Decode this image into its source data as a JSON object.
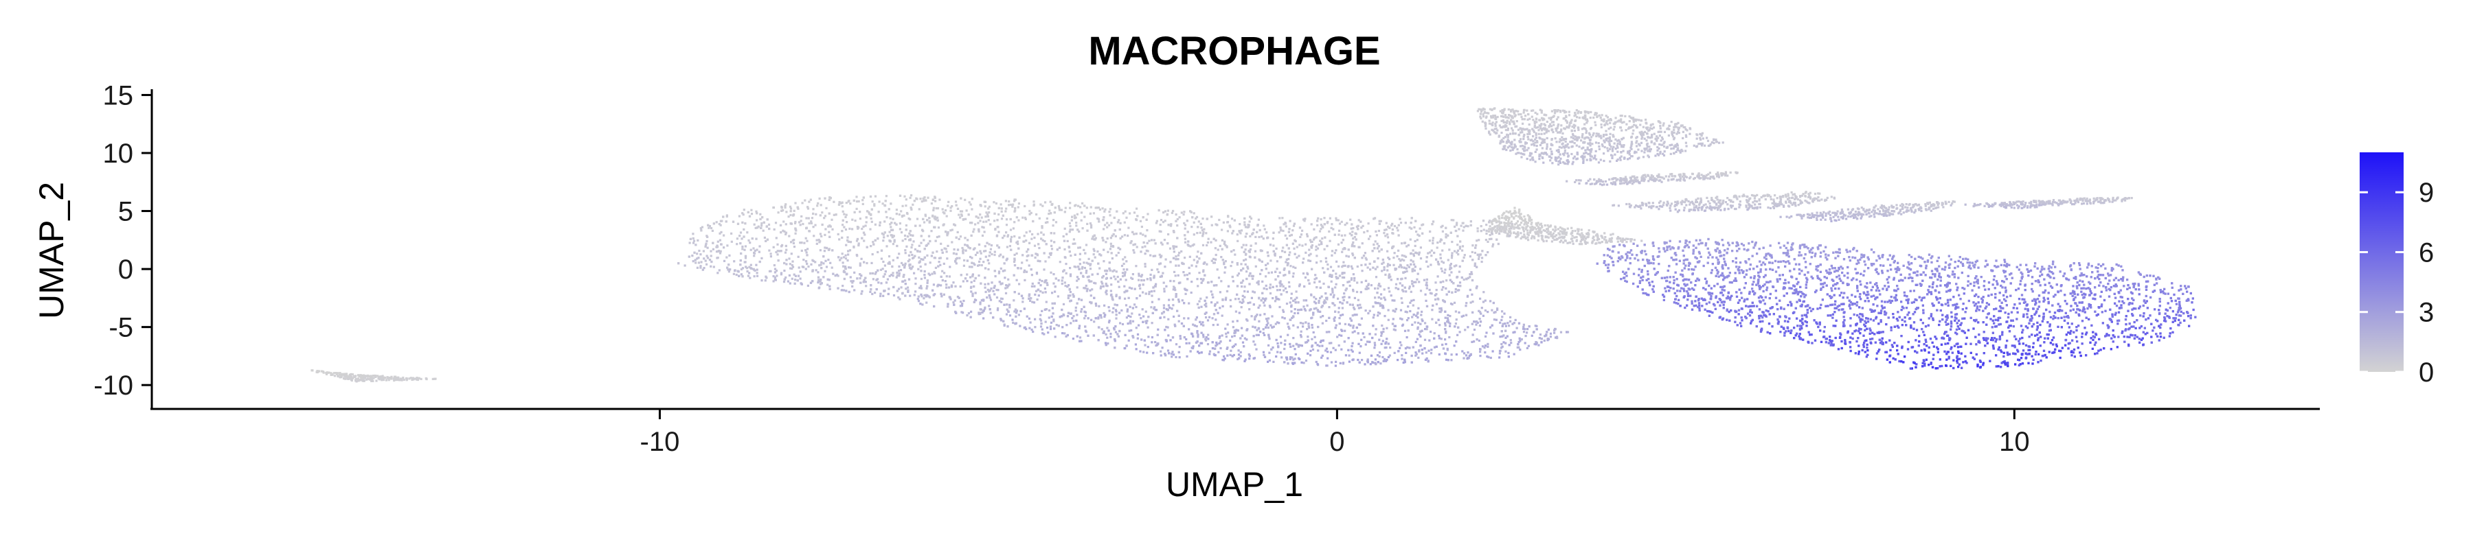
{
  "chart_data": {
    "type": "scatter",
    "title": "MACROPHAGE",
    "xlabel": "UMAP_1",
    "ylabel": "UMAP_2",
    "xlim": [
      -17.5,
      14.5
    ],
    "ylim": [
      -12,
      15.5
    ],
    "x_ticks": [
      -10,
      0,
      10
    ],
    "x_tick_labels": [
      "-10",
      "0",
      "10"
    ],
    "y_ticks": [
      15,
      10,
      5,
      0,
      -5,
      -10
    ],
    "y_tick_labels": [
      "15",
      "10",
      "5",
      "0",
      "-5",
      "-10"
    ],
    "grid": false,
    "legend": {
      "placement": "right",
      "type": "colorbar",
      "ticks": [
        0,
        3,
        6,
        9
      ],
      "tick_labels": [
        "0",
        "3",
        "6",
        "9"
      ],
      "range": [
        0,
        11
      ],
      "low_color": "#D3D3D3",
      "high_color": "#1E12F8"
    },
    "regions": [
      {
        "name": "main-left-cluster",
        "polygon": [
          [
            -9.6,
            1.0
          ],
          [
            -9.8,
            0.5
          ],
          [
            -9.0,
            -0.5
          ],
          [
            -6.5,
            -2.5
          ],
          [
            -4.5,
            -5.5
          ],
          [
            -2.5,
            -7.5
          ],
          [
            0,
            -8.3
          ],
          [
            2.5,
            -7.5
          ],
          [
            3.5,
            -5.5
          ],
          [
            2.5,
            -4.0
          ],
          [
            2.0,
            -1.0
          ],
          [
            2.2,
            1.5
          ],
          [
            2.8,
            3.5
          ],
          [
            2.5,
            4.2
          ],
          [
            1.5,
            4.5
          ],
          [
            -1.0,
            4.5
          ],
          [
            -3.0,
            5.5
          ],
          [
            -6.0,
            6.5
          ],
          [
            -8.0,
            6.2
          ],
          [
            -9.0,
            5.0
          ],
          [
            -9.6,
            3.0
          ]
        ],
        "expression": [
          0.3,
          3.0
        ]
      },
      {
        "name": "bridge",
        "polygon": [
          [
            2.2,
            4.0
          ],
          [
            2.6,
            5.5
          ],
          [
            3.0,
            4.0
          ],
          [
            4.0,
            3.2
          ],
          [
            4.5,
            2.5
          ],
          [
            3.6,
            2.2
          ],
          [
            2.8,
            2.6
          ],
          [
            2.2,
            3.2
          ]
        ],
        "expression": [
          0,
          0.5
        ]
      },
      {
        "name": "right-lower-cluster",
        "polygon": [
          [
            4.0,
            2.2
          ],
          [
            5.5,
            2.8
          ],
          [
            7.5,
            2.0
          ],
          [
            9.5,
            1.0
          ],
          [
            11.5,
            0.5
          ],
          [
            12.6,
            -1.5
          ],
          [
            12.7,
            -4.5
          ],
          [
            12.0,
            -6.5
          ],
          [
            10.0,
            -8.3
          ],
          [
            8.5,
            -8.6
          ],
          [
            7.5,
            -7.0
          ],
          [
            6.0,
            -5.0
          ],
          [
            4.5,
            -2.0
          ],
          [
            3.8,
            0.5
          ]
        ],
        "expression": [
          3.0,
          9.5
        ]
      },
      {
        "name": "upper-right-cluster",
        "polygon": [
          [
            2.0,
            14.0
          ],
          [
            3.5,
            13.8
          ],
          [
            5.0,
            12.8
          ],
          [
            5.7,
            11.0
          ],
          [
            5.0,
            10.0
          ],
          [
            4.0,
            9.3
          ],
          [
            3.0,
            9.0
          ],
          [
            2.4,
            10.5
          ],
          [
            2.2,
            12.0
          ]
        ],
        "expression": [
          0.3,
          1.5
        ]
      },
      {
        "name": "thin-arm-1",
        "polygon": [
          [
            3.2,
            7.6
          ],
          [
            4.5,
            8.2
          ],
          [
            6.0,
            8.5
          ],
          [
            5.6,
            7.9
          ],
          [
            4.0,
            7.3
          ]
        ],
        "expression": [
          0.3,
          1.5
        ]
      },
      {
        "name": "thin-arm-2",
        "polygon": [
          [
            4.0,
            5.6
          ],
          [
            6.0,
            6.5
          ],
          [
            7.0,
            6.8
          ],
          [
            7.4,
            6.2
          ],
          [
            6.5,
            5.3
          ],
          [
            5.0,
            5.0
          ]
        ],
        "expression": [
          0.3,
          1.5
        ]
      },
      {
        "name": "thin-arm-3",
        "polygon": [
          [
            6.5,
            4.6
          ],
          [
            8.0,
            5.6
          ],
          [
            9.2,
            6.0
          ],
          [
            8.8,
            5.1
          ],
          [
            7.3,
            4.2
          ]
        ],
        "expression": [
          0.5,
          2.0
        ]
      },
      {
        "name": "thin-arm-4",
        "polygon": [
          [
            9.0,
            5.6
          ],
          [
            11.0,
            6.2
          ],
          [
            11.8,
            6.3
          ],
          [
            11.6,
            5.9
          ],
          [
            10.0,
            5.3
          ]
        ],
        "expression": [
          0.5,
          2.0
        ]
      },
      {
        "name": "far-left-arc",
        "polygon": [
          [
            -15.5,
            -8.2
          ],
          [
            -14.5,
            -9.6
          ],
          [
            -13.2,
            -9.4
          ],
          [
            -14.5,
            -9.0
          ],
          [
            -15.2,
            -8.6
          ]
        ],
        "expression": [
          0,
          0.3
        ]
      }
    ]
  }
}
